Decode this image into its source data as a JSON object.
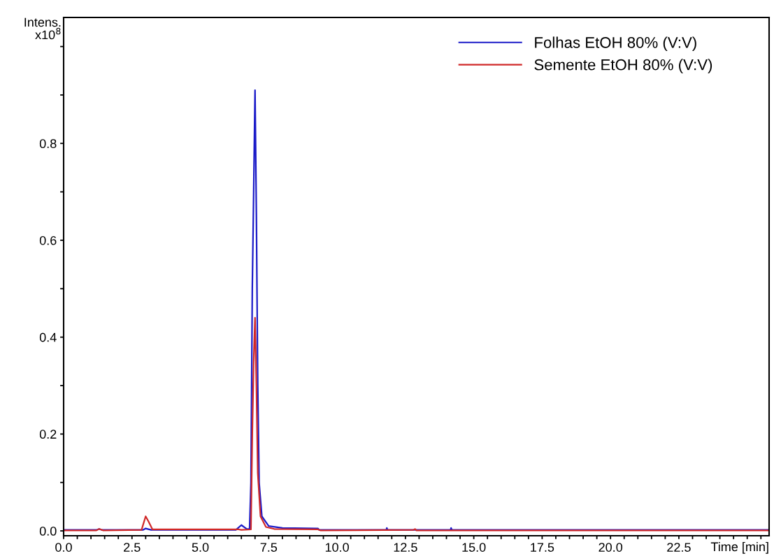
{
  "chart_data": {
    "type": "line",
    "xlabel": "Time [min]",
    "ylabel": "Intens.\nx10$^{8}$",
    "legend": "top right",
    "grid": false,
    "marker": "none",
    "line_style": "solid",
    "xlim": [
      0,
      25.8
    ],
    "ylim": [
      -0.01,
      1.06
    ],
    "xticks": [
      {
        "value": 0,
        "label": "0.0"
      },
      {
        "value": 0.5,
        "label": null
      },
      {
        "value": 1,
        "label": null
      },
      {
        "value": 1.5,
        "label": null
      },
      {
        "value": 2,
        "label": null
      },
      {
        "value": 2.5,
        "label": "2.5"
      },
      {
        "value": 3,
        "label": null
      },
      {
        "value": 3.5,
        "label": null
      },
      {
        "value": 4,
        "label": null
      },
      {
        "value": 4.5,
        "label": null
      },
      {
        "value": 5,
        "label": "5.0"
      },
      {
        "value": 5.5,
        "label": null
      },
      {
        "value": 6,
        "label": null
      },
      {
        "value": 6.5,
        "label": null
      },
      {
        "value": 7,
        "label": null
      },
      {
        "value": 7.5,
        "label": "7.5"
      },
      {
        "value": 8,
        "label": null
      },
      {
        "value": 8.5,
        "label": null
      },
      {
        "value": 9,
        "label": null
      },
      {
        "value": 9.5,
        "label": null
      },
      {
        "value": 10,
        "label": "10.0"
      },
      {
        "value": 10.5,
        "label": null
      },
      {
        "value": 11,
        "label": null
      },
      {
        "value": 11.5,
        "label": null
      },
      {
        "value": 12,
        "label": null
      },
      {
        "value": 12.5,
        "label": "12.5"
      },
      {
        "value": 13,
        "label": null
      },
      {
        "value": 13.5,
        "label": null
      },
      {
        "value": 14,
        "label": null
      },
      {
        "value": 14.5,
        "label": null
      },
      {
        "value": 15,
        "label": "15.0"
      },
      {
        "value": 15.5,
        "label": null
      },
      {
        "value": 16,
        "label": null
      },
      {
        "value": 16.5,
        "label": null
      },
      {
        "value": 17,
        "label": null
      },
      {
        "value": 17.5,
        "label": "17.5"
      },
      {
        "value": 18,
        "label": null
      },
      {
        "value": 18.5,
        "label": null
      },
      {
        "value": 19,
        "label": null
      },
      {
        "value": 19.5,
        "label": null
      },
      {
        "value": 20,
        "label": "20.0"
      },
      {
        "value": 20.5,
        "label": null
      },
      {
        "value": 21,
        "label": null
      },
      {
        "value": 21.5,
        "label": null
      },
      {
        "value": 22,
        "label": null
      },
      {
        "value": 22.5,
        "label": "22.5"
      },
      {
        "value": 23,
        "label": null
      },
      {
        "value": 23.5,
        "label": null
      },
      {
        "value": 24,
        "label": null
      },
      {
        "value": 24.5,
        "label": null
      },
      {
        "value": 25,
        "label": null
      },
      {
        "value": 25.5,
        "label": null
      }
    ],
    "yticks": [
      {
        "value": 0,
        "label": "0.0"
      },
      {
        "value": 0.1,
        "label": null
      },
      {
        "value": 0.2,
        "label": "0.2"
      },
      {
        "value": 0.3,
        "label": null
      },
      {
        "value": 0.4,
        "label": "0.4"
      },
      {
        "value": 0.5,
        "label": null
      },
      {
        "value": 0.6,
        "label": "0.6"
      },
      {
        "value": 0.7,
        "label": null
      },
      {
        "value": 0.8,
        "label": "0.8"
      },
      {
        "value": 0.9,
        "label": null
      },
      {
        "value": 1.0,
        "label": null
      }
    ],
    "series": [
      {
        "name": "Folhas EtOH 80% (V:V)",
        "color": "#1a1ac8",
        "x": [
          0,
          1.2,
          1.3,
          1.4,
          2.9,
          3.0,
          3.2,
          6.3,
          6.5,
          6.7,
          6.8,
          6.85,
          6.9,
          6.95,
          7.0,
          7.05,
          7.1,
          7.15,
          7.25,
          7.5,
          8.0,
          9.3,
          9.35,
          11.8,
          11.82,
          11.85,
          14.15,
          14.17,
          14.2,
          25.8
        ],
        "values": [
          0.002,
          0.002,
          0.004,
          0.002,
          0.002,
          0.005,
          0.002,
          0.002,
          0.012,
          0.004,
          0.004,
          0.1,
          0.5,
          0.7,
          0.91,
          0.65,
          0.3,
          0.1,
          0.03,
          0.01,
          0.006,
          0.005,
          0.002,
          0.002,
          0.006,
          0.002,
          0.002,
          0.006,
          0.002,
          0.002
        ]
      },
      {
        "name": "Semente EtOH 80% (V:V)",
        "color": "#d02828",
        "x": [
          0,
          1.2,
          1.3,
          1.45,
          2.85,
          3.0,
          3.1,
          3.25,
          3.5,
          4.3,
          5.6,
          6.4,
          6.5,
          6.85,
          6.9,
          6.95,
          7.0,
          7.05,
          7.1,
          7.2,
          7.4,
          7.7,
          9.3,
          9.4,
          12.8,
          12.85,
          12.9,
          25.8
        ],
        "values": [
          0.001,
          0.001,
          0.004,
          0.001,
          0.002,
          0.03,
          0.02,
          0.003,
          0.003,
          0.003,
          0.003,
          0.003,
          0.002,
          0.003,
          0.2,
          0.35,
          0.44,
          0.3,
          0.12,
          0.03,
          0.008,
          0.004,
          0.003,
          0.001,
          0.002,
          0.004,
          0.001,
          0.001
        ]
      }
    ]
  }
}
